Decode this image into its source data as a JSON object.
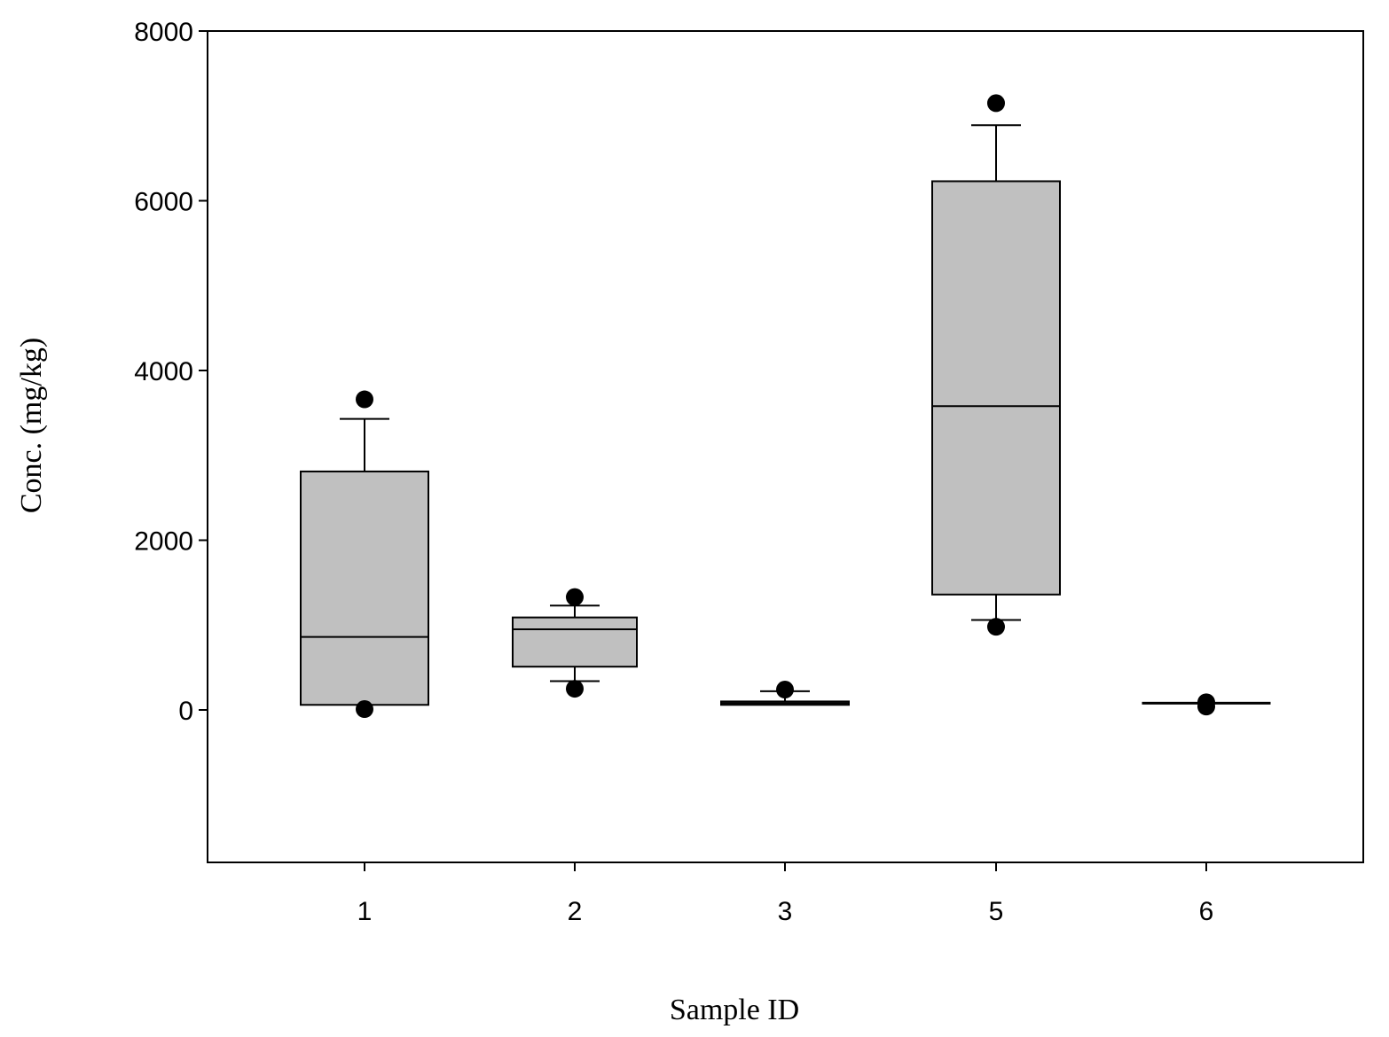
{
  "chart_data": {
    "type": "box",
    "xlabel": "Sample ID",
    "ylabel": "Conc. (mg/kg)",
    "ylim": [
      -1800,
      8000
    ],
    "yticks": [
      0,
      2000,
      4000,
      6000,
      8000
    ],
    "categories": [
      "1",
      "2",
      "3",
      "5",
      "6"
    ],
    "boxes": [
      {
        "category": "1",
        "whisker_low": 60,
        "q1": 60,
        "median": 860,
        "q3": 2810,
        "whisker_high": 3430,
        "outliers": [
          3660,
          10
        ]
      },
      {
        "category": "2",
        "whisker_low": 340,
        "q1": 510,
        "median": 950,
        "q3": 1090,
        "whisker_high": 1230,
        "outliers": [
          1330,
          250
        ]
      },
      {
        "category": "3",
        "whisker_low": 60,
        "q1": 60,
        "median": 80,
        "q3": 100,
        "whisker_high": 220,
        "outliers": [
          240
        ]
      },
      {
        "category": "5",
        "whisker_low": 1060,
        "q1": 1360,
        "median": 3580,
        "q3": 6230,
        "whisker_high": 6890,
        "outliers": [
          7150,
          980
        ]
      },
      {
        "category": "6",
        "whisker_low": 80,
        "q1": 80,
        "median": 80,
        "q3": 80,
        "whisker_high": 80,
        "outliers": [
          90,
          40
        ]
      }
    ],
    "grid": false,
    "legend": "none",
    "colors": {
      "box_fill": "#c0c0c0",
      "line": "#000000",
      "outlier": "#000000"
    }
  }
}
